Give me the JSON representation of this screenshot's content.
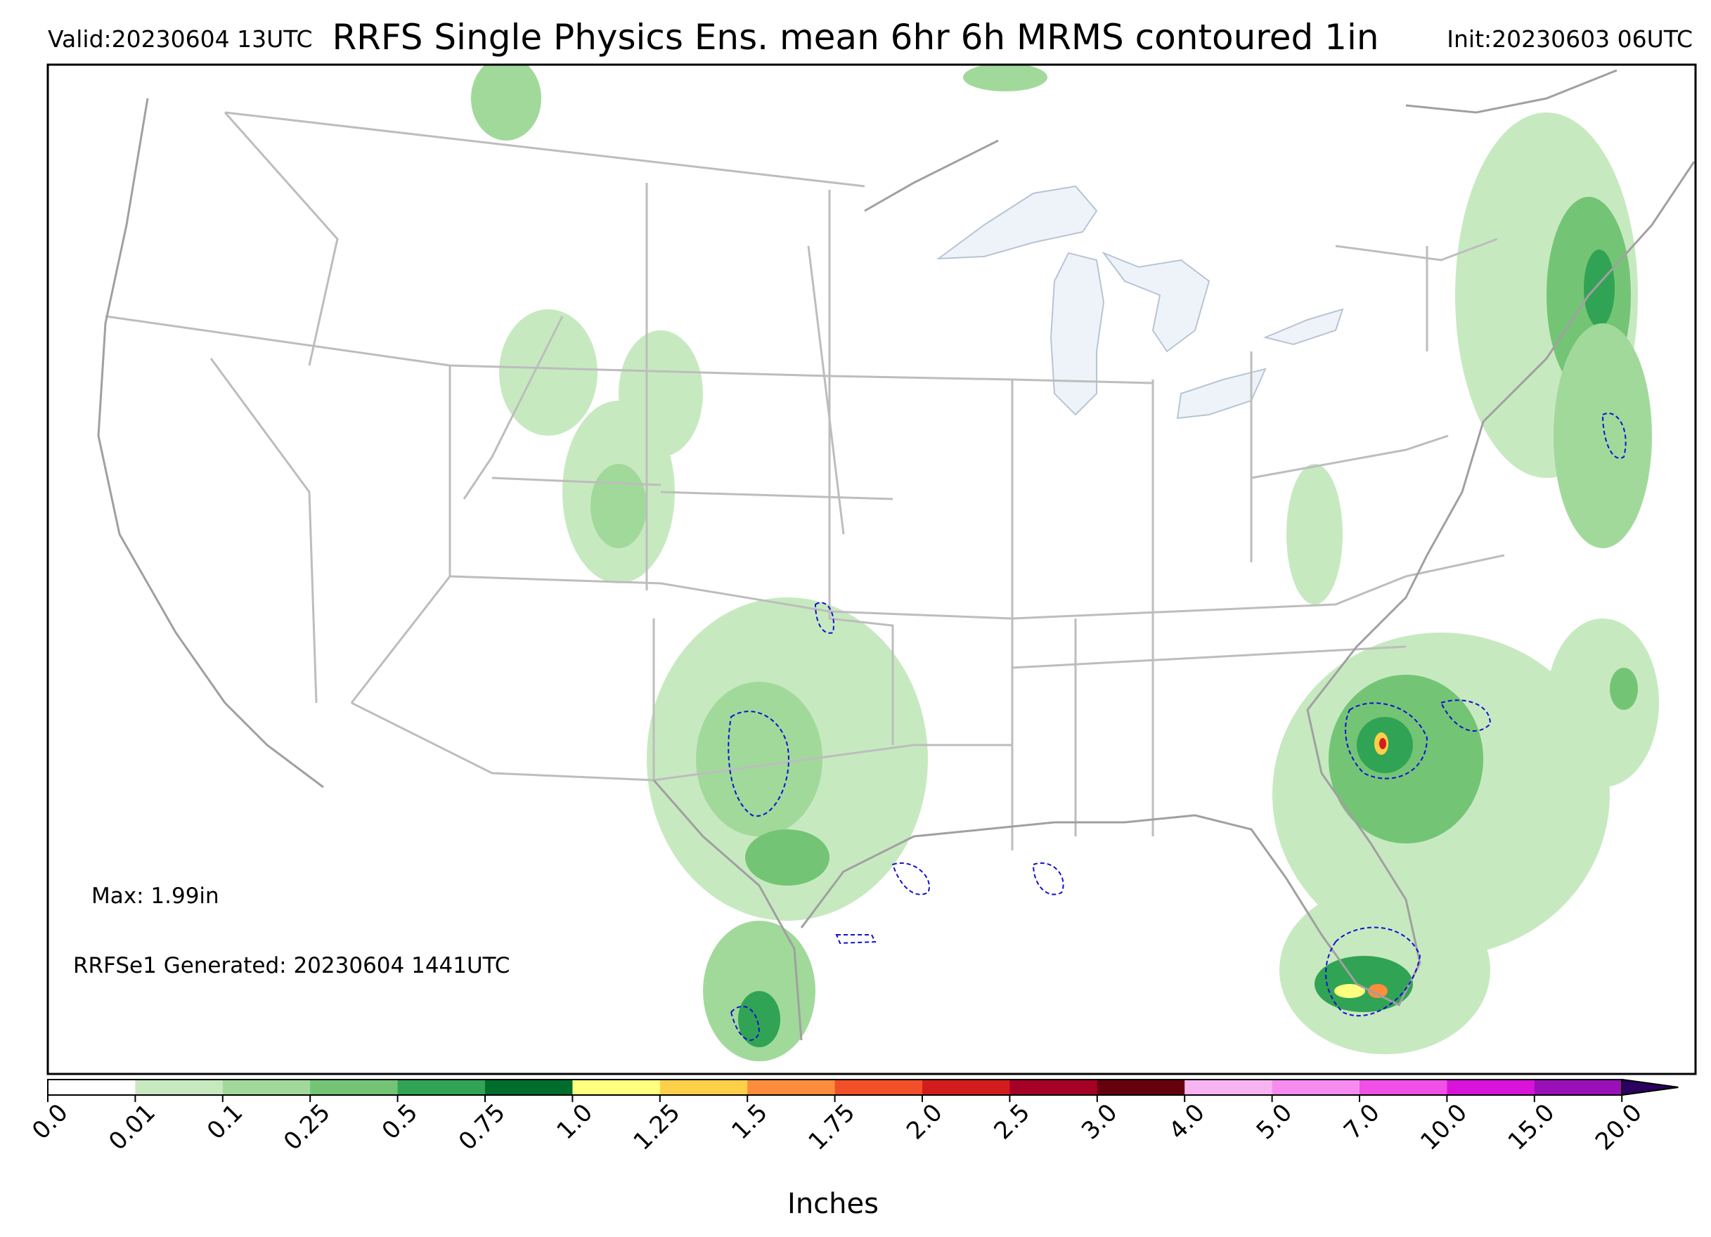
{
  "header": {
    "valid": "Valid:20230604 13UTC",
    "title": "RRFS Single Physics Ens. mean 6hr 6h MRMS contoured 1in",
    "init": "Init:20230603 06UTC"
  },
  "annotations": {
    "max": "Max: 1.99in",
    "generated": "RRFSe1 Generated: 20230604 1441UTC"
  },
  "colorbar": {
    "unit_label": "Inches",
    "ticks": [
      "0.0",
      "0.01",
      "0.1",
      "0.25",
      "0.5",
      "0.75",
      "1.0",
      "1.25",
      "1.5",
      "1.75",
      "2.0",
      "2.5",
      "3.0",
      "4.0",
      "5.0",
      "7.0",
      "10.0",
      "15.0",
      "20.0"
    ],
    "colors": [
      "#ffffff",
      "#c7e9c0",
      "#a1d99b",
      "#74c476",
      "#31a354",
      "#006d2c",
      "#ffff80",
      "#fdd049",
      "#fd8d3c",
      "#f1502a",
      "#d31d1d",
      "#a50026",
      "#67000d",
      "#f8b4f0",
      "#f68cf0",
      "#f050e6",
      "#d913d9",
      "#9a10b8"
    ],
    "extend_color": "#2b0060"
  },
  "map_colors": {
    "state_lines": "#bdbdbd",
    "coast": "#a0a0a0",
    "lakes": "#eef3fa",
    "contour": "#1010d0"
  }
}
